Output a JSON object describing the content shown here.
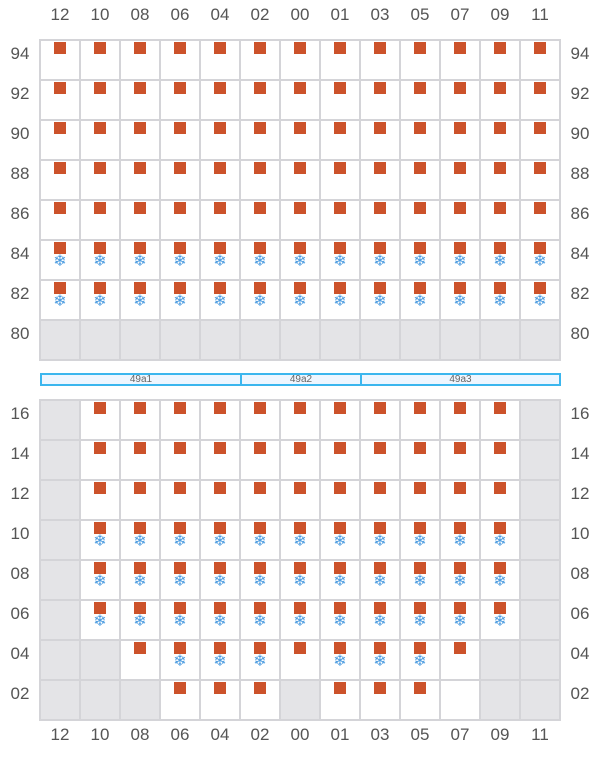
{
  "columns": [
    "12",
    "10",
    "08",
    "06",
    "04",
    "02",
    "00",
    "01",
    "03",
    "05",
    "07",
    "09",
    "11"
  ],
  "legend": {
    "g": "unavailable",
    "o": "orange-marker",
    "s": "orange-marker+snowflake",
    "e": "empty"
  },
  "colors": {
    "marker": "#cc522a",
    "snow": "#4a9be0",
    "band": "#3bb6ee",
    "unavailable": "#e4e4e7"
  },
  "top_section": [
    {
      "label": "94",
      "cells": "ooooooooooooo"
    },
    {
      "label": "92",
      "cells": "ooooooooooooo"
    },
    {
      "label": "90",
      "cells": "ooooooooooooo"
    },
    {
      "label": "88",
      "cells": "ooooooooooooo"
    },
    {
      "label": "86",
      "cells": "ooooooooooooo"
    },
    {
      "label": "84",
      "cells": "sssssssssssss"
    },
    {
      "label": "82",
      "cells": "sssssssssssss"
    },
    {
      "label": "80",
      "cells": "ggggggggggggg"
    }
  ],
  "bands": [
    {
      "label": "49a1",
      "span": 5
    },
    {
      "label": "49a2",
      "span": 3
    },
    {
      "label": "49a3",
      "span": 5
    }
  ],
  "bottom_section": [
    {
      "label": "16",
      "cells": "gooooooooooog"
    },
    {
      "label": "14",
      "cells": "gooooooooooog"
    },
    {
      "label": "12",
      "cells": "gooooooooooog"
    },
    {
      "label": "10",
      "cells": "gsssssssssssg"
    },
    {
      "label": "08",
      "cells": "gsssssssssssg"
    },
    {
      "label": "06",
      "cells": "gsssssssssssg"
    },
    {
      "label": "04",
      "cells": "ggosssosssogg"
    },
    {
      "label": "02",
      "cells": "gggooogoooegg"
    }
  ]
}
